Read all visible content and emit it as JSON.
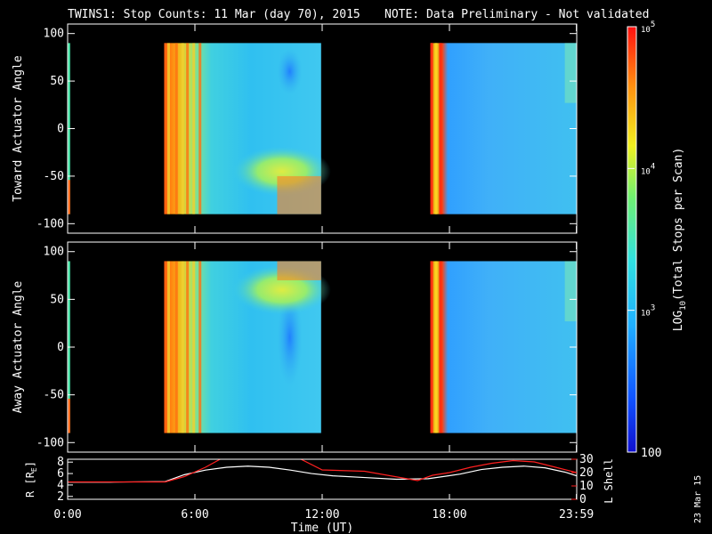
{
  "title": {
    "main": "TWINS1: Stop Counts: 11 Mar (day  70), 2015",
    "note": "NOTE: Data Preliminary - Not validated",
    "note_color": "#ff2020"
  },
  "date_stamp": "23 Mar 15",
  "chart_data": [
    {
      "type": "heatmap",
      "name": "toward",
      "ylabel": "Toward Actuator Angle",
      "ylim": [
        -110,
        110
      ],
      "yticks": [
        100,
        50,
        0,
        -50,
        -100
      ],
      "data_blocks": [
        {
          "x_start_h": 0.0,
          "x_end_h": 0.12,
          "y_range": [
            -90,
            90
          ],
          "level": "mixed"
        },
        {
          "x_start_h": 4.55,
          "x_end_h": 11.95,
          "y_range": [
            -90,
            90
          ],
          "level": "high-then-moderate"
        },
        {
          "x_start_h": 17.1,
          "x_end_h": 23.99,
          "y_range": [
            -90,
            90
          ],
          "level": "moderate"
        }
      ]
    },
    {
      "type": "heatmap",
      "name": "away",
      "ylabel": "Away Actuator Angle",
      "ylim": [
        -110,
        110
      ],
      "yticks": [
        100,
        50,
        0,
        -50,
        -100
      ],
      "data_blocks": [
        {
          "x_start_h": 0.0,
          "x_end_h": 0.12,
          "y_range": [
            -90,
            90
          ],
          "level": "mixed"
        },
        {
          "x_start_h": 4.55,
          "x_end_h": 11.95,
          "y_range": [
            -90,
            90
          ],
          "level": "high-then-moderate"
        },
        {
          "x_start_h": 17.1,
          "x_end_h": 23.99,
          "y_range": [
            -90,
            90
          ],
          "level": "low-moderate"
        }
      ]
    },
    {
      "type": "line",
      "name": "orbit",
      "ylabel_left": "R [R",
      "ylabel_left_sub": "E",
      "ylabel_left_end": "]",
      "ylabel_right": "L Shell",
      "ylim_left": [
        1.5,
        8.5
      ],
      "yticks_left": [
        2,
        4,
        6,
        8
      ],
      "ylim_right": [
        0,
        30
      ],
      "yticks_right": [
        0,
        10,
        20,
        30
      ],
      "right_axis_color": "#ff2020",
      "series": [
        {
          "name": "R",
          "color": "#ffffff",
          "axis": "left",
          "x": [
            0,
            2,
            4.6,
            5.5,
            6.5,
            7.5,
            8.5,
            9.5,
            10.5,
            11.5,
            12.5,
            14,
            15.5,
            17,
            18.5,
            19.5,
            20.5,
            21.5,
            22.5,
            23.5,
            24
          ],
          "y": [
            4.5,
            4.5,
            4.6,
            5.8,
            6.6,
            7.1,
            7.3,
            7.1,
            6.6,
            6.0,
            5.6,
            5.3,
            5.0,
            5.1,
            5.9,
            6.7,
            7.1,
            7.3,
            7.0,
            6.2,
            5.6
          ]
        },
        {
          "name": "L",
          "color": "#ff2020",
          "axis": "right",
          "x": [
            0,
            2,
            4.6,
            5.5,
            6.5,
            7.3,
            8.5,
            10.3,
            11.0,
            12.0,
            14,
            16.5,
            17.2,
            18,
            19,
            20,
            21,
            22,
            23,
            24
          ],
          "y": [
            13,
            13,
            13,
            17,
            24,
            31,
            34,
            34,
            30,
            22,
            21,
            14,
            18,
            20,
            24,
            27,
            29,
            28,
            24,
            20
          ]
        }
      ]
    }
  ],
  "xaxis": {
    "label": "Time (UT)",
    "range_h": [
      0,
      24
    ],
    "ticks": [
      {
        "h": 0,
        "label": "0:00"
      },
      {
        "h": 6,
        "label": "6:00"
      },
      {
        "h": 12,
        "label": "12:00"
      },
      {
        "h": 18,
        "label": "18:00"
      },
      {
        "h": 23.983,
        "label": "23:59"
      }
    ]
  },
  "colorbar": {
    "label": "LOG",
    "label_sub": "10",
    "label_end": "(Total Stops per Scan)",
    "range": [
      100,
      100000
    ],
    "ticks": [
      {
        "value": 100000,
        "base": "10",
        "exp": "5"
      },
      {
        "value": 10000,
        "base": "10",
        "exp": "4"
      },
      {
        "value": 1000,
        "base": "10",
        "exp": "3"
      },
      {
        "value": 100,
        "base": "100",
        "exp": ""
      }
    ]
  }
}
